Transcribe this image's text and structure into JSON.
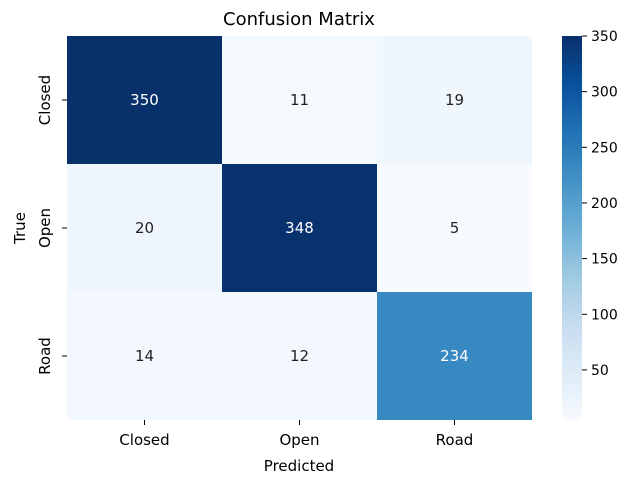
{
  "chart_data": {
    "type": "heatmap",
    "title": "Confusion Matrix",
    "xlabel": "Predicted",
    "ylabel": "True",
    "x_categories": [
      "Closed",
      "Open",
      "Road"
    ],
    "y_categories": [
      "Closed",
      "Open",
      "Road"
    ],
    "values": [
      [
        350,
        11,
        19
      ],
      [
        20,
        348,
        5
      ],
      [
        14,
        12,
        234
      ]
    ],
    "colormap": "Blues",
    "colorbar": {
      "range": [
        5,
        350
      ],
      "ticks": [
        50,
        100,
        150,
        200,
        250,
        300,
        350
      ]
    },
    "annotations": true,
    "grid": false
  }
}
